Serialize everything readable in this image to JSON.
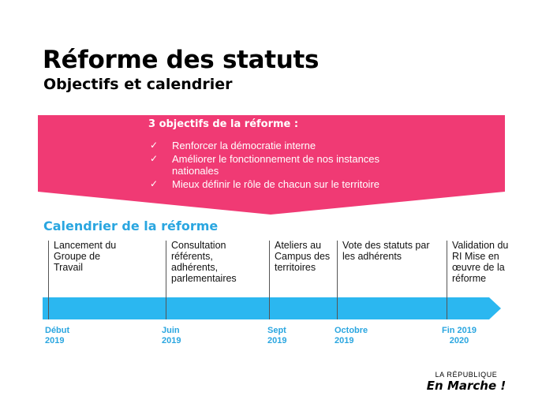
{
  "colors": {
    "banner_pink": "#f03a74",
    "timeline_blue": "#2bb7f0",
    "date_blue": "#2aa6e0",
    "heading_blue": "#2aa6e0",
    "white": "#ffffff"
  },
  "header": {
    "title": "Réforme des statuts",
    "subtitle": "Objectifs et calendrier"
  },
  "objectives": {
    "heading": "3 objectifs de la réforme :",
    "items": [
      {
        "check": "✓",
        "text": "Renforcer la démocratie interne"
      },
      {
        "check": "✓",
        "text": "Améliorer le fonctionnement de nos instances nationales"
      },
      {
        "check": "✓",
        "text": "Mieux définir le rôle de chacun sur le territoire"
      }
    ]
  },
  "calendar": {
    "heading": "Calendrier de la réforme",
    "milestones": [
      {
        "label": "Lancement du Groupe de Travail",
        "date": "Début 2019"
      },
      {
        "label": "Consultation référents, adhérents, parlementaires",
        "date": "Juin 2019"
      },
      {
        "label": "Ateliers au Campus des territoires",
        "date": "Sept 2019"
      },
      {
        "label": "Vote des statuts par les adhérents",
        "date": "Octobre 2019"
      },
      {
        "label": "Validation du RI Mise en œuvre de la réforme",
        "date": "Fin 2019 2020"
      }
    ]
  },
  "logo": {
    "top": "LA RÉPUBLIQUE",
    "main": "En Marche !"
  }
}
